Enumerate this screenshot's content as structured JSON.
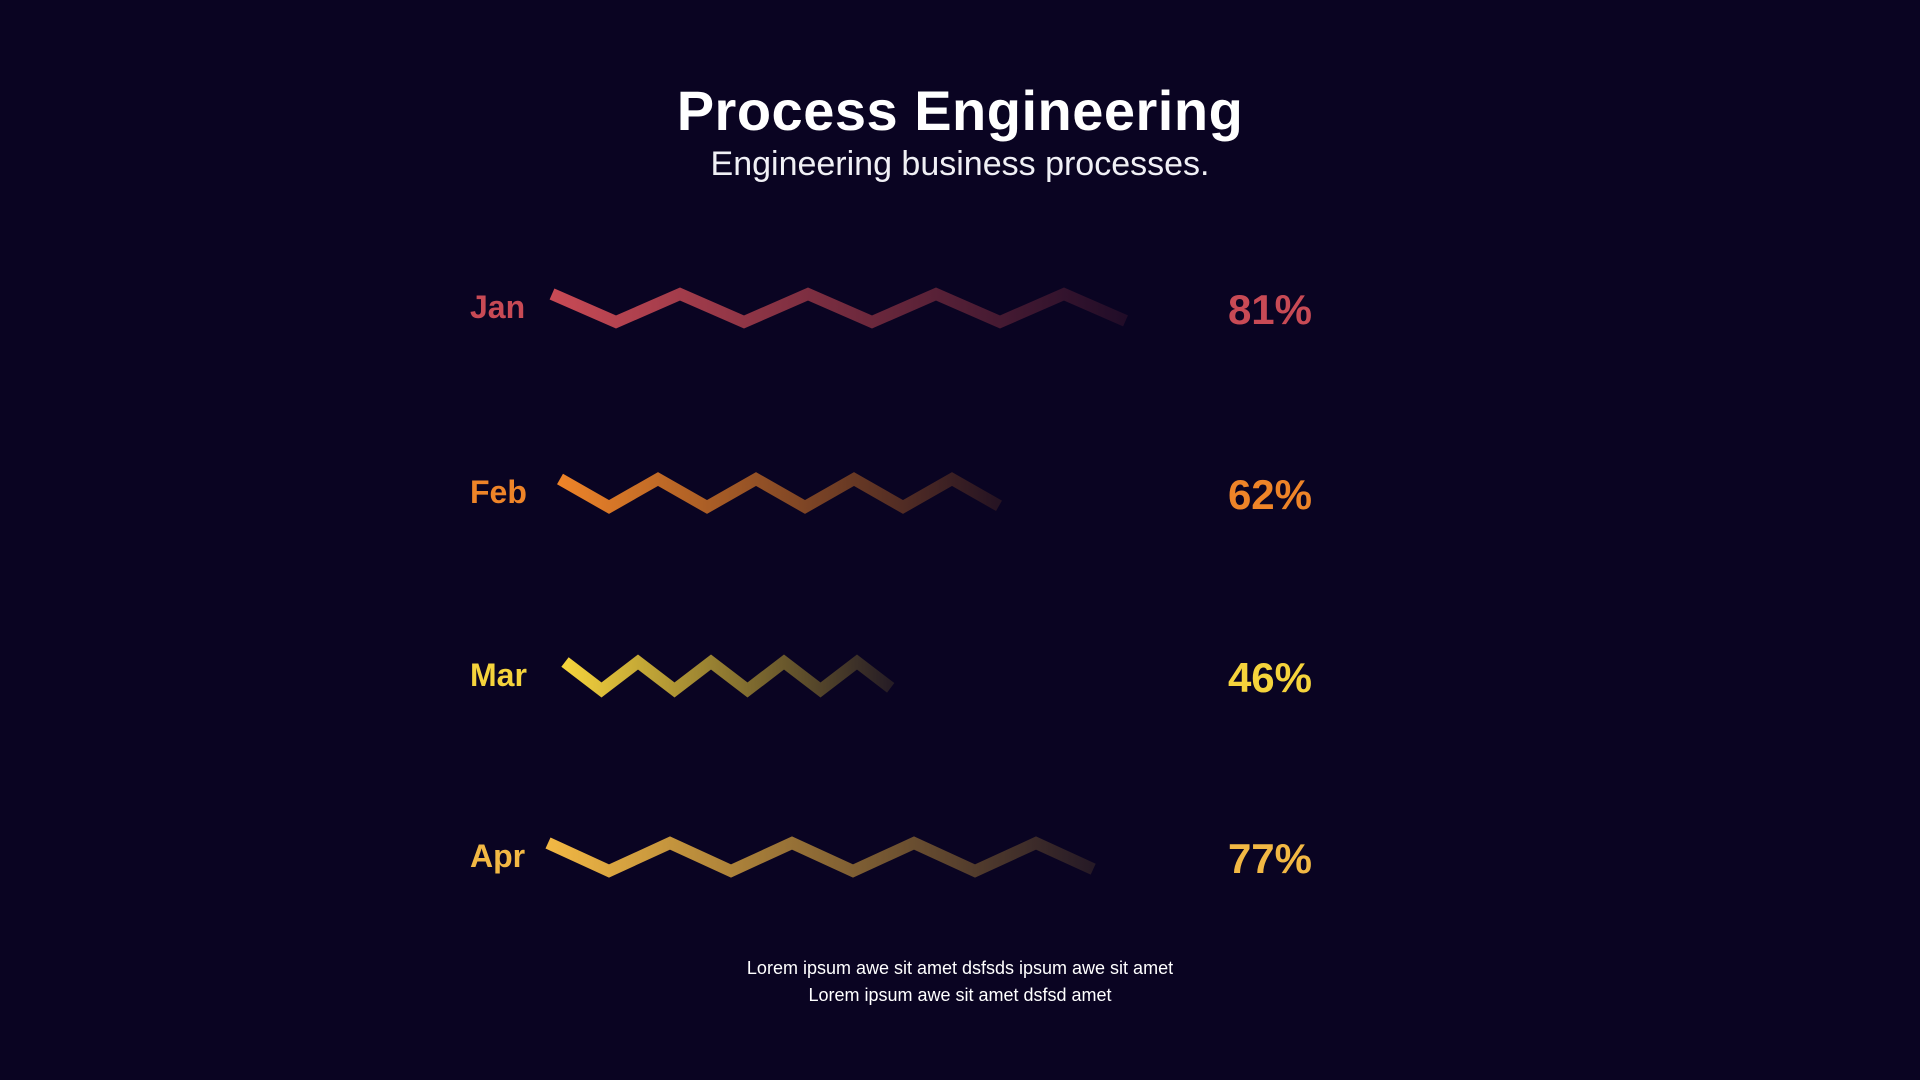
{
  "header": {
    "title": "Process Engineering",
    "subtitle": "Engineering business processes."
  },
  "chart_data": {
    "type": "bar",
    "title": "Process Engineering",
    "subtitle": "Engineering business processes.",
    "categories": [
      "Jan",
      "Feb",
      "Mar",
      "Apr"
    ],
    "values": [
      81,
      62,
      46,
      77
    ],
    "value_labels": [
      "81%",
      "62%",
      "46%",
      "77%"
    ],
    "value_unit": "%",
    "colors": [
      "#c84a55",
      "#ee8428",
      "#f5d33c",
      "#f2b844"
    ],
    "style": "zigzag-gradient-bars",
    "ylim": [
      0,
      100
    ],
    "grid": false,
    "legend": "none"
  },
  "footer": {
    "line1": "Lorem ipsum awe sit amet dsfsds ipsum awe sit amet",
    "line2": "Lorem ipsum awe sit amet dsfsd amet"
  },
  "theme": {
    "background": "#0a0422",
    "text": "#ffffff"
  }
}
